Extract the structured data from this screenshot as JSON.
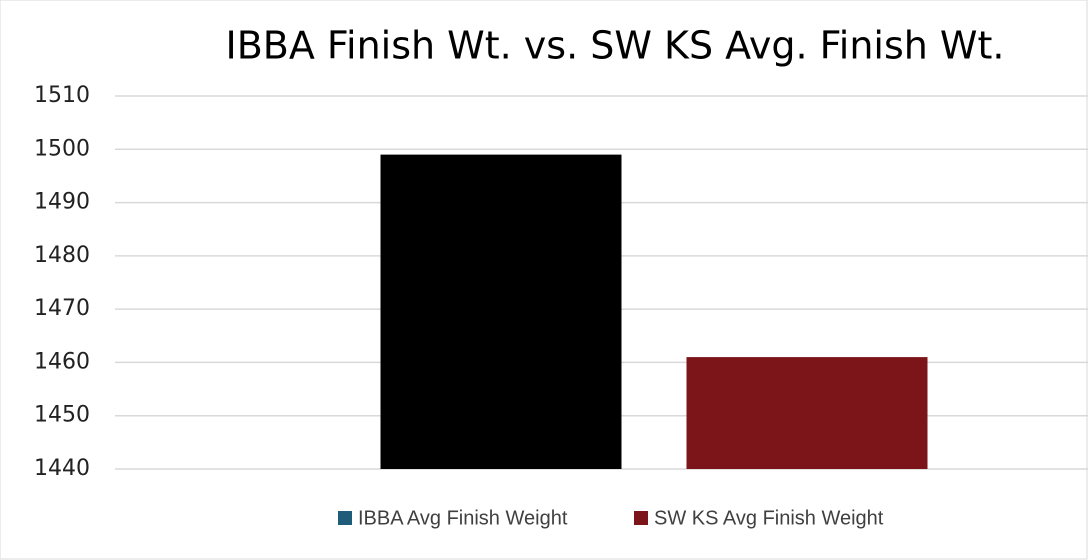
{
  "chart_data": {
    "type": "bar",
    "title": "IBBA Finish Wt. vs. SW KS Avg. Finish Wt.",
    "categories": [
      null
    ],
    "series": [
      {
        "name": "IBBA Avg Finish Weight",
        "color": "#000000",
        "legend_color": "#1f5c7a",
        "values": [
          1499
        ]
      },
      {
        "name": "SW KS Avg Finish Weight",
        "color": "#7b1519",
        "legend_color": "#7b1519",
        "values": [
          1461
        ]
      }
    ],
    "ylim": [
      1440,
      1510
    ],
    "yticks": [
      1440,
      1450,
      1460,
      1470,
      1480,
      1490,
      1500,
      1510
    ],
    "grid": true
  }
}
